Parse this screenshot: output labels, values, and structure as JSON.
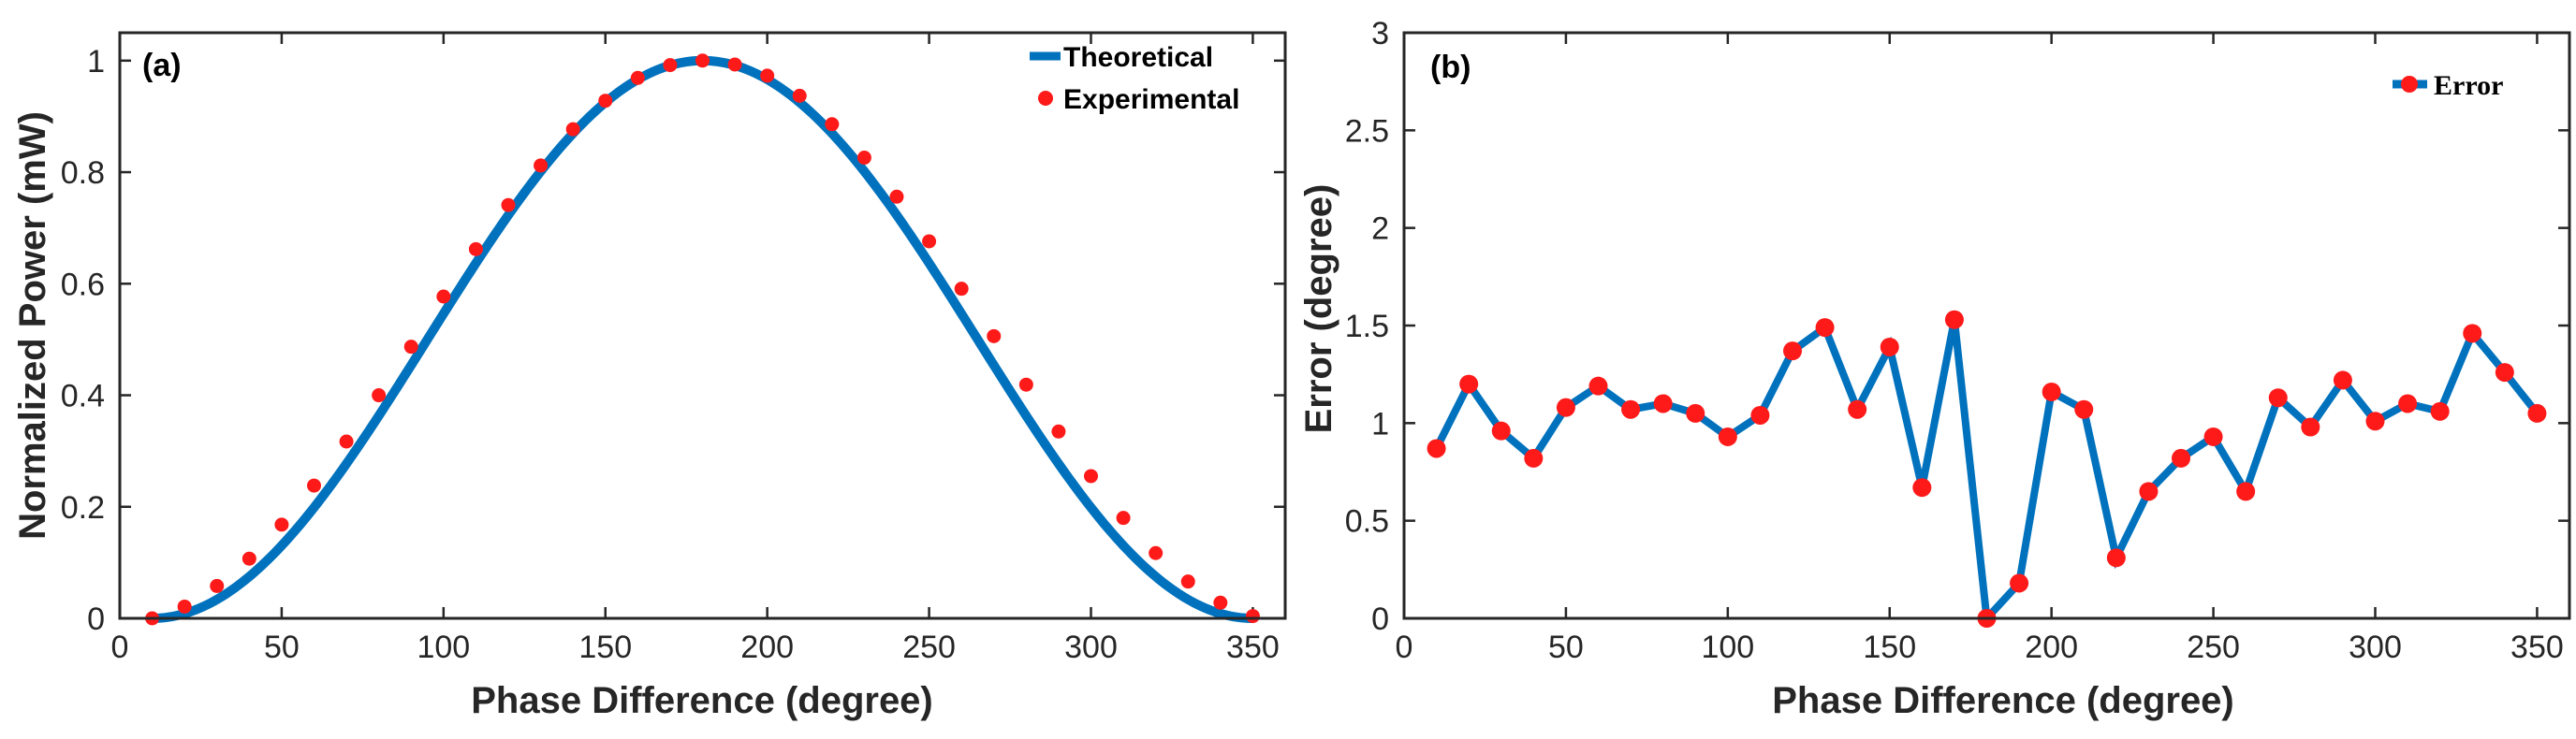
{
  "colors": {
    "line": "#0072BD",
    "marker": "#FF1A1A",
    "axis": "#262626"
  },
  "chart_data": [
    {
      "panel": "(a)",
      "type": "line",
      "title": "",
      "xlabel": "Phase Difference (degree)",
      "ylabel": "Normalized Power  (mW)",
      "xlim": [
        0,
        360
      ],
      "ylim": [
        0,
        1.05
      ],
      "xticks": [
        0,
        50,
        100,
        150,
        200,
        250,
        300,
        350
      ],
      "xtick_labels": [
        "0",
        "50",
        "100",
        "150",
        "200",
        "250",
        "300",
        "350"
      ],
      "yticks": [
        0,
        0.2,
        0.4,
        0.6,
        0.8,
        1
      ],
      "ytick_labels": [
        "0",
        "0.2",
        "0.4",
        "0.6",
        "0.8",
        "1"
      ],
      "legend_position": "top-right",
      "series": [
        {
          "name": "Theoretical",
          "style": "line",
          "formula": "(1 - cos((x - 10) * pi / 170)) / 2",
          "x_range": [
            10,
            350
          ]
        },
        {
          "name": "Experimental",
          "style": "markers",
          "x": [
            10,
            20,
            30,
            40,
            50,
            60,
            70,
            80,
            90,
            100,
            110,
            120,
            130,
            140,
            150,
            160,
            170,
            180,
            190,
            200,
            210,
            220,
            230,
            240,
            250,
            260,
            270,
            280,
            290,
            300,
            310,
            320,
            330,
            340,
            350
          ],
          "y": [
            0.0,
            0.021,
            0.058,
            0.107,
            0.168,
            0.238,
            0.317,
            0.4,
            0.487,
            0.577,
            0.662,
            0.741,
            0.812,
            0.877,
            0.928,
            0.969,
            0.992,
            1.0,
            0.993,
            0.973,
            0.937,
            0.886,
            0.826,
            0.756,
            0.676,
            0.591,
            0.506,
            0.419,
            0.335,
            0.255,
            0.18,
            0.117,
            0.066,
            0.028,
            0.004
          ]
        }
      ]
    },
    {
      "panel": "(b)",
      "type": "line",
      "title": "",
      "xlabel": "Phase Difference (degree)",
      "ylabel": "Error (degree)",
      "xlim": [
        0,
        360
      ],
      "ylim": [
        0,
        3
      ],
      "xticks": [
        0,
        50,
        100,
        150,
        200,
        250,
        300,
        350
      ],
      "xtick_labels": [
        "0",
        "50",
        "100",
        "150",
        "200",
        "250",
        "300",
        "350"
      ],
      "yticks": [
        0,
        0.5,
        1,
        1.5,
        2,
        2.5,
        3
      ],
      "ytick_labels": [
        "0",
        "0.5",
        "1",
        "1.5",
        "2",
        "2.5",
        "3"
      ],
      "legend_position": "top-right",
      "series": [
        {
          "name": "Error",
          "style": "line+markers",
          "x": [
            10,
            20,
            30,
            40,
            50,
            60,
            70,
            80,
            90,
            100,
            110,
            120,
            130,
            140,
            150,
            160,
            170,
            180,
            190,
            200,
            210,
            220,
            230,
            240,
            250,
            260,
            270,
            280,
            290,
            300,
            310,
            320,
            330,
            340,
            350
          ],
          "y": [
            0.87,
            1.2,
            0.96,
            0.82,
            1.08,
            1.19,
            1.07,
            1.1,
            1.05,
            0.93,
            1.04,
            1.37,
            1.49,
            1.07,
            1.39,
            0.67,
            1.53,
            0.0,
            0.18,
            1.16,
            1.07,
            0.31,
            0.65,
            0.82,
            0.93,
            0.65,
            1.13,
            0.98,
            1.22,
            1.01,
            1.1,
            1.06,
            1.46,
            1.26,
            1.05
          ]
        }
      ]
    }
  ]
}
